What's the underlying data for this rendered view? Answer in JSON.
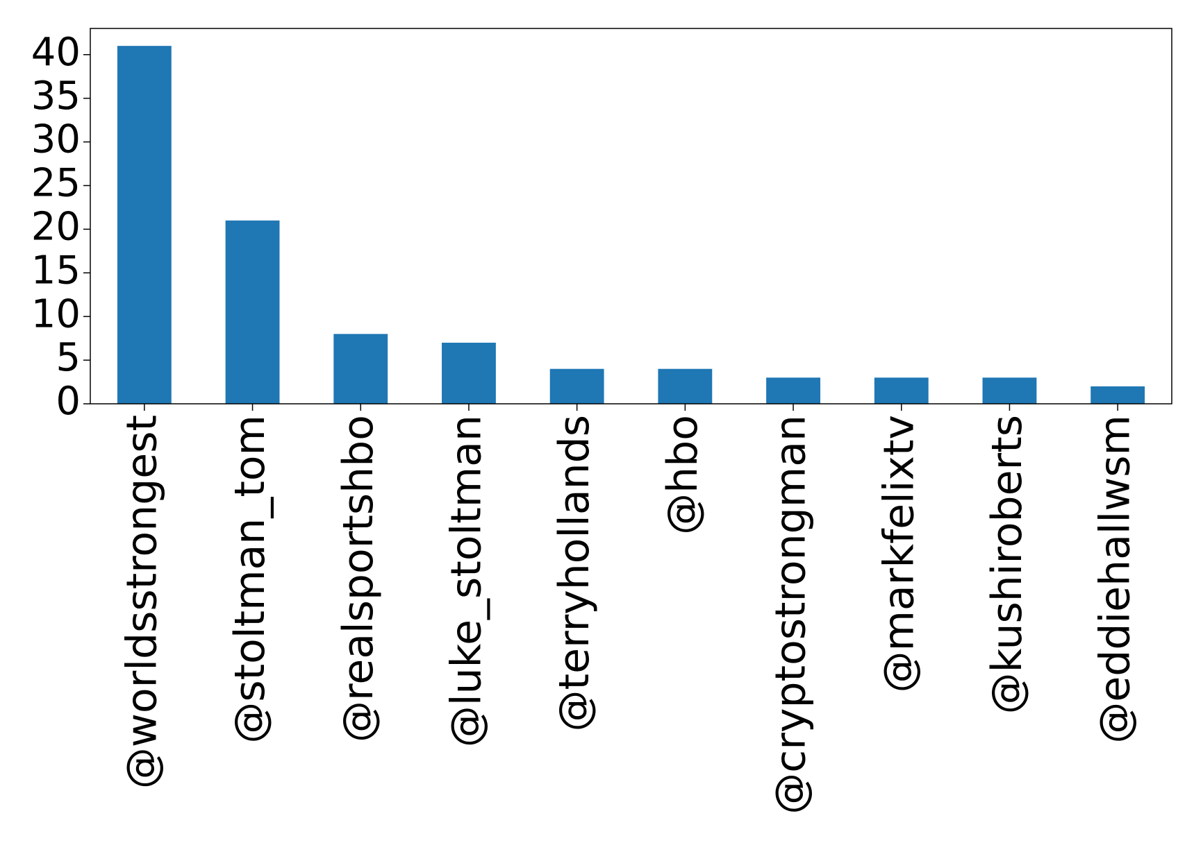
{
  "chart_data": {
    "type": "bar",
    "categories": [
      "@worldsstrongest",
      "@stoltman_tom",
      "@realsportshbo",
      "@luke_stoltman",
      "@terryhollands",
      "@hbo",
      "@cryptostrongman",
      "@markfelixtv",
      "@kushiroberts",
      "@eddiehallwsm"
    ],
    "values": [
      41,
      21,
      8,
      7,
      4,
      4,
      3,
      3,
      3,
      2
    ],
    "color": "#1f77b4",
    "ylim": [
      0,
      43
    ],
    "yticks": [
      0,
      5,
      10,
      15,
      20,
      25,
      30,
      35,
      40
    ],
    "grid": false
  }
}
